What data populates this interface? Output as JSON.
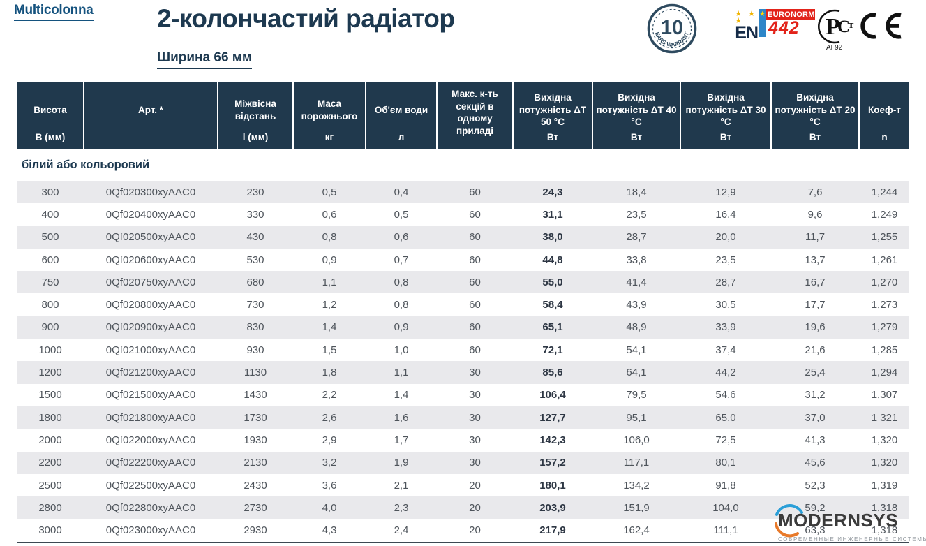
{
  "brand": {
    "logo_text": "Multicolonna"
  },
  "header": {
    "title": "2-колончастий радіатор",
    "subtitle": "Ширина 66 мм"
  },
  "badges": {
    "warranty": {
      "number": "10",
      "text": "YEARS WARRANTY"
    },
    "euronorm": {
      "en": "EN",
      "stars": "★ ★ ★",
      "star": "★",
      "norm": "EURONORM",
      "number": "442"
    },
    "rostest": {
      "code": "АГ92"
    },
    "ce": "CE"
  },
  "colors": {
    "header_navy": "#20394d",
    "brand_blue": "#14527e",
    "title_navy": "#1d3950",
    "zebra_gray": "#e9e9ec",
    "euronorm_red": "#e2231a",
    "euronorm_blue": "#2e86c8",
    "watermark_blue": "#2b9fd8",
    "watermark_orange": "#e87a2a"
  },
  "table": {
    "section_label": "білий або кольоровий",
    "columns": [
      {
        "label": "Висота",
        "unit": "В (мм)"
      },
      {
        "label": "Арт. *",
        "unit": ""
      },
      {
        "label": "Міжвісна відстань",
        "unit": "l (мм)"
      },
      {
        "label": "Маса порожнього",
        "unit": "кг"
      },
      {
        "label": "Об'єм води",
        "unit": "л"
      },
      {
        "label": "Макс. к-ть секцій в одному приладі",
        "unit": ""
      },
      {
        "label": "Вихідна потужність ΔT 50 °C",
        "unit": "Вт"
      },
      {
        "label": "Вихідна потужність ΔT 40 °C",
        "unit": "Вт"
      },
      {
        "label": "Вихідна потужність ΔT 30 °C",
        "unit": "Вт"
      },
      {
        "label": "Вихідна потужність ΔT 20 °C",
        "unit": "Вт"
      },
      {
        "label": "Коеф-т",
        "unit": "n"
      }
    ],
    "rows": [
      [
        "300",
        "0Qf020300xyAAC0",
        "230",
        "0,5",
        "0,4",
        "60",
        "24,3",
        "18,4",
        "12,9",
        "7,6",
        "1,244"
      ],
      [
        "400",
        "0Qf020400xyAAC0",
        "330",
        "0,6",
        "0,5",
        "60",
        "31,1",
        "23,5",
        "16,4",
        "9,6",
        "1,249"
      ],
      [
        "500",
        "0Qf020500xyAAC0",
        "430",
        "0,8",
        "0,6",
        "60",
        "38,0",
        "28,7",
        "20,0",
        "11,7",
        "1,255"
      ],
      [
        "600",
        "0Qf020600xyAAC0",
        "530",
        "0,9",
        "0,7",
        "60",
        "44,8",
        "33,8",
        "23,5",
        "13,7",
        "1,261"
      ],
      [
        "750",
        "0Qf020750xyAAC0",
        "680",
        "1,1",
        "0,8",
        "60",
        "55,0",
        "41,4",
        "28,7",
        "16,7",
        "1,270"
      ],
      [
        "800",
        "0Qf020800xyAAC0",
        "730",
        "1,2",
        "0,8",
        "60",
        "58,4",
        "43,9",
        "30,5",
        "17,7",
        "1,273"
      ],
      [
        "900",
        "0Qf020900xyAAC0",
        "830",
        "1,4",
        "0,9",
        "60",
        "65,1",
        "48,9",
        "33,9",
        "19,6",
        "1,279"
      ],
      [
        "1000",
        "0Qf021000xyAAC0",
        "930",
        "1,5",
        "1,0",
        "60",
        "72,1",
        "54,1",
        "37,4",
        "21,6",
        "1,285"
      ],
      [
        "1200",
        "0Qf021200xyAAC0",
        "1130",
        "1,8",
        "1,1",
        "30",
        "85,6",
        "64,1",
        "44,2",
        "25,4",
        "1,294"
      ],
      [
        "1500",
        "0Qf021500xyAAC0",
        "1430",
        "2,2",
        "1,4",
        "30",
        "106,4",
        "79,5",
        "54,6",
        "31,2",
        "1,307"
      ],
      [
        "1800",
        "0Qf021800xyAAC0",
        "1730",
        "2,6",
        "1,6",
        "30",
        "127,7",
        "95,1",
        "65,0",
        "37,0",
        "1 321"
      ],
      [
        "2000",
        "0Qf022000xyAAC0",
        "1930",
        "2,9",
        "1,7",
        "30",
        "142,3",
        "106,0",
        "72,5",
        "41,3",
        "1,320"
      ],
      [
        "2200",
        "0Qf022200xyAAC0",
        "2130",
        "3,2",
        "1,9",
        "30",
        "157,2",
        "117,1",
        "80,1",
        "45,6",
        "1,320"
      ],
      [
        "2500",
        "0Qf022500xyAAC0",
        "2430",
        "3,6",
        "2,1",
        "20",
        "180,1",
        "134,2",
        "91,8",
        "52,3",
        "1,319"
      ],
      [
        "2800",
        "0Qf022800xyAAC0",
        "2730",
        "4,0",
        "2,3",
        "20",
        "203,9",
        "151,9",
        "104,0",
        "59,2",
        "1,318"
      ],
      [
        "3000",
        "0Qf023000xyAAC0",
        "2930",
        "4,3",
        "2,4",
        "20",
        "217,9",
        "162,4",
        "111,1",
        "63,3",
        "1,318"
      ]
    ]
  },
  "watermark": {
    "name": "MODERNSYS",
    "tagline": "СОВРЕМЕННЫЕ ИНЖЕНЕРНЫЕ СИСТЕМЫ"
  }
}
